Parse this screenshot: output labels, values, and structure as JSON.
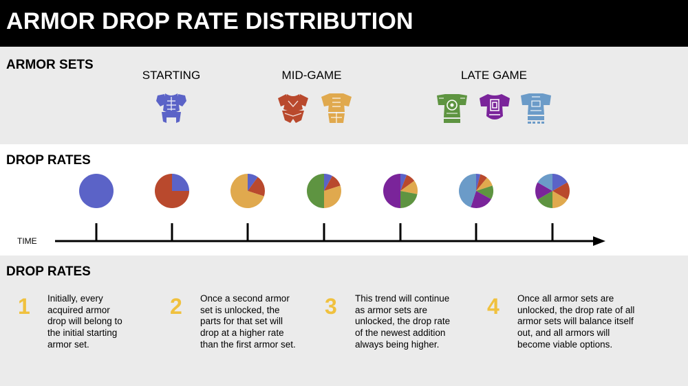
{
  "header": {
    "title": "ARMOR DROP RATE DISTRIBUTION"
  },
  "armor_sets": {
    "heading": "ARMOR SETS",
    "stages": [
      {
        "label": "STARTING"
      },
      {
        "label": "MID-GAME"
      },
      {
        "label": "LATE GAME"
      }
    ],
    "sets": [
      {
        "name": "blue-armor",
        "color": "#5b63c7"
      },
      {
        "name": "red-armor",
        "color": "#b9492d"
      },
      {
        "name": "orange-armor",
        "color": "#e0a94e"
      },
      {
        "name": "green-armor",
        "color": "#5e9441"
      },
      {
        "name": "purple-armor",
        "color": "#7a249a"
      },
      {
        "name": "lightblue-armor",
        "color": "#6b9bc8"
      }
    ]
  },
  "drop_rates": {
    "heading": "DROP RATES",
    "time_label": "TIME",
    "chart_data": {
      "type": "pie",
      "series_colors": [
        "#5b63c7",
        "#b9492d",
        "#e0a94e",
        "#5e9441",
        "#7a249a",
        "#6b9bc8"
      ],
      "pies": [
        [
          1
        ],
        [
          0.25,
          0.75
        ],
        [
          0.1,
          0.2,
          0.7
        ],
        [
          0.08,
          0.12,
          0.3,
          0.5
        ],
        [
          0.06,
          0.09,
          0.13,
          0.22,
          0.5
        ],
        [
          0.04,
          0.07,
          0.09,
          0.13,
          0.22,
          0.45
        ],
        [
          0.16667,
          0.16667,
          0.16667,
          0.16667,
          0.16667,
          0.16667
        ]
      ]
    }
  },
  "explanation": {
    "heading": "DROP RATES",
    "steps": [
      {
        "num": "1",
        "lines": [
          "Initially, every",
          "acquired armor",
          "drop will belong to",
          "the initial starting",
          "armor set."
        ]
      },
      {
        "num": "2",
        "lines": [
          "Once a second armor",
          "set is unlocked, the",
          "parts for that set will",
          "drop at a higher rate",
          "than the first armor set."
        ]
      },
      {
        "num": "3",
        "lines": [
          "This trend will continue",
          "as armor sets are",
          "unlocked, the drop rate",
          "of the newest addition",
          "always being higher."
        ]
      },
      {
        "num": "4",
        "lines": [
          "Once all armor sets are",
          "unlocked, the drop rate of all",
          "armor sets will balance itself",
          "out, and all armors will",
          "become viable options."
        ]
      }
    ]
  }
}
